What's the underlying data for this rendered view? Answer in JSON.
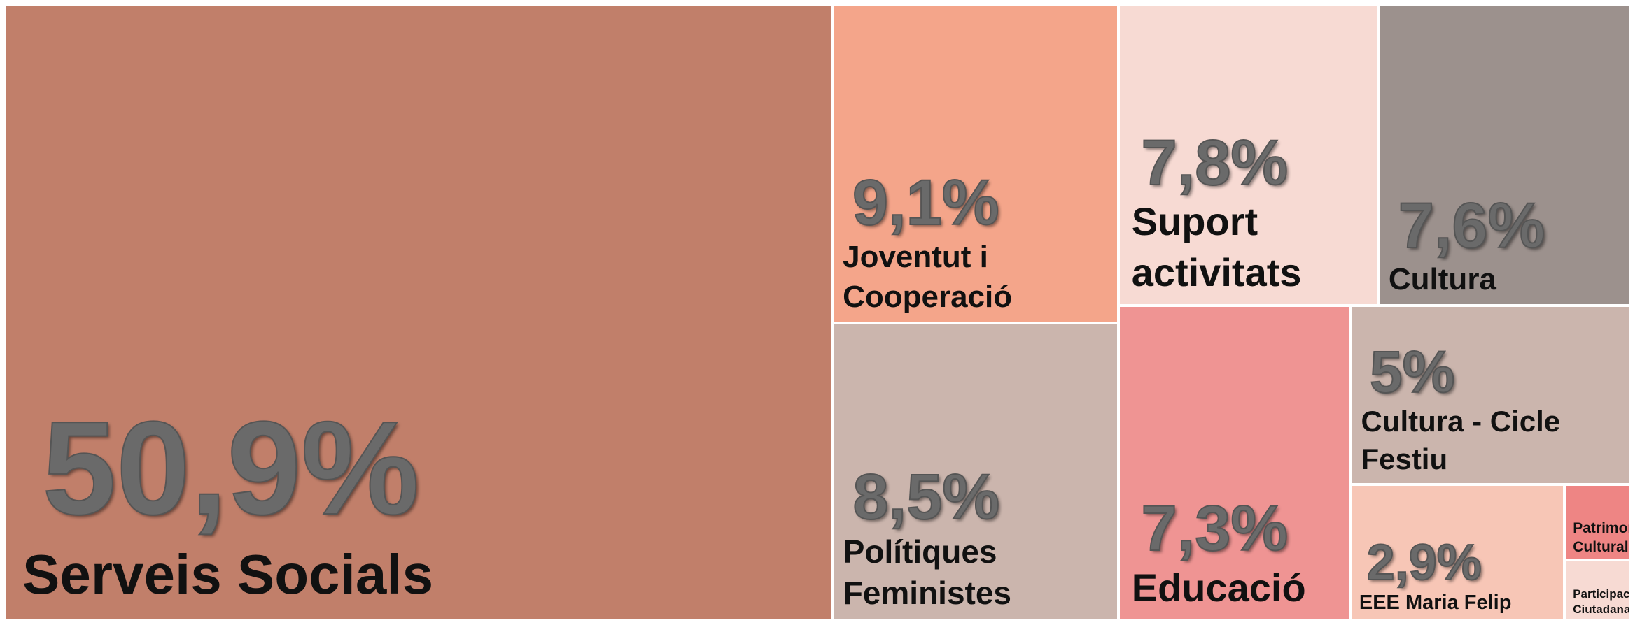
{
  "chart_data": {
    "type": "treemap",
    "categories": [
      "Serveis Socials",
      "Joventut i Cooperació",
      "Polítiques Feministes",
      "Suport activitats",
      "Cultura",
      "Educació",
      "Cultura - Cicle Festiu",
      "EEE Maria Felip",
      "Patrimoni Cultural",
      "Participació Ciutadana"
    ],
    "values": [
      50.9,
      9.1,
      8.5,
      7.8,
      7.6,
      7.3,
      5,
      2.9,
      0.5,
      0.4
    ],
    "value_labels": [
      "50,9%",
      "9,1%",
      "8,5%",
      "7,8%",
      "7,6%",
      "7,3%",
      "5%",
      "2,9%",
      null,
      null
    ],
    "colors": [
      "#c17f6a",
      "#f4a58a",
      "#cbb5ad",
      "#f7dad3",
      "#9c918d",
      "#ef9493",
      "#cbb5ad",
      "#f7c6b6",
      "#ee8584",
      "#f7dad3"
    ]
  }
}
